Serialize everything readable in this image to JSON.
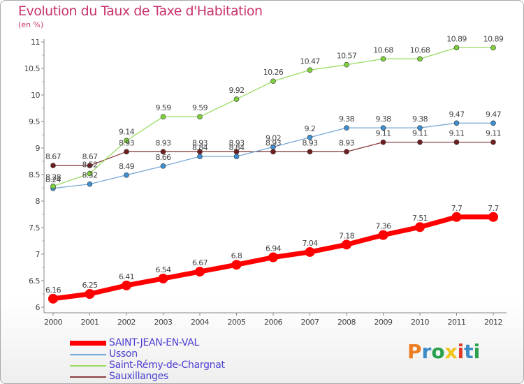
{
  "title": "Evolution du Taux de Taxe d'Habitation",
  "subtitle": "(en %)",
  "logo": {
    "text": "Proxiti",
    "letters": [
      "P",
      "r",
      "o",
      "x",
      "i",
      "t",
      "i"
    ],
    "colors": [
      "#ee7d21",
      "#3c8cc8",
      "#2aa14c",
      "#f0c418",
      "#e23a26",
      "#3c8cc8",
      "#2aa14c"
    ]
  },
  "chart_data": {
    "type": "line",
    "title": "Evolution du Taux de Taxe d'Habitation",
    "subtitle": "(en %)",
    "x": [
      "2000",
      "2001",
      "2002",
      "2003",
      "2004",
      "2005",
      "2006",
      "2007",
      "2008",
      "2009",
      "2010",
      "2011",
      "2012"
    ],
    "ylim": [
      6,
      11
    ],
    "yticks": [
      "6",
      "6.5",
      "7",
      "7.5",
      "8",
      "8.5",
      "9",
      "9.5",
      "10",
      "10.5",
      "11"
    ],
    "grid": false,
    "legend_position": "bottom-left",
    "series": [
      {
        "name": "SAINT-JEAN-EN-VAL",
        "color": "#ff0000",
        "width": 7,
        "marker": 7,
        "values": [
          6.16,
          6.25,
          6.41,
          6.54,
          6.67,
          6.8,
          6.94,
          7.04,
          7.18,
          7.36,
          7.51,
          7.7,
          7.7
        ],
        "labels": [
          "6.16",
          "6.25",
          "6.41",
          "6.54",
          "6.67",
          "6.8",
          "6.94",
          "7.04",
          "7.18",
          "7.36",
          "7.51",
          "7.7",
          "7.7"
        ]
      },
      {
        "name": "Usson",
        "color": "#75a8d6",
        "width": 1.3,
        "marker": 3.5,
        "markerFill": "#3f8fd1",
        "values": [
          8.24,
          8.32,
          8.49,
          8.66,
          8.84,
          8.84,
          9.02,
          9.2,
          9.38,
          9.38,
          9.38,
          9.47,
          9.47
        ],
        "labels": [
          "8.24",
          "8.32",
          "8.49",
          "8.66",
          "8.84",
          "8.84",
          "9.02",
          "9.2",
          "9.38",
          "9.38",
          "9.38",
          "9.47",
          "9.47"
        ]
      },
      {
        "name": "Saint-Rémy-de-Chargnat",
        "color": "#9adb62",
        "width": 1.3,
        "marker": 3.5,
        "markerFill": "#7fd03c",
        "values": [
          8.28,
          8.52,
          9.14,
          9.59,
          9.59,
          9.92,
          10.26,
          10.47,
          10.57,
          10.68,
          10.68,
          10.89,
          10.89
        ],
        "labels": [
          "8.28",
          "8.52",
          "9.14",
          "9.59",
          "9.59",
          "9.92",
          "10.26",
          "10.47",
          "10.57",
          "10.68",
          "10.68",
          "10.89",
          "10.89"
        ]
      },
      {
        "name": "Sauxillanges",
        "color": "#8a3e3e",
        "width": 1.3,
        "marker": 3.5,
        "markerFill": "#6f1f1f",
        "values": [
          8.67,
          8.67,
          8.93,
          8.93,
          8.93,
          8.93,
          8.93,
          8.93,
          8.93,
          9.11,
          9.11,
          9.11,
          9.11
        ],
        "labels": [
          "8.67",
          "8.67",
          "8.93",
          "8.93",
          "8.93",
          "8.93",
          "8.93",
          "8.93",
          "8.93",
          "9.11",
          "9.11",
          "9.11",
          "9.11"
        ]
      }
    ]
  }
}
